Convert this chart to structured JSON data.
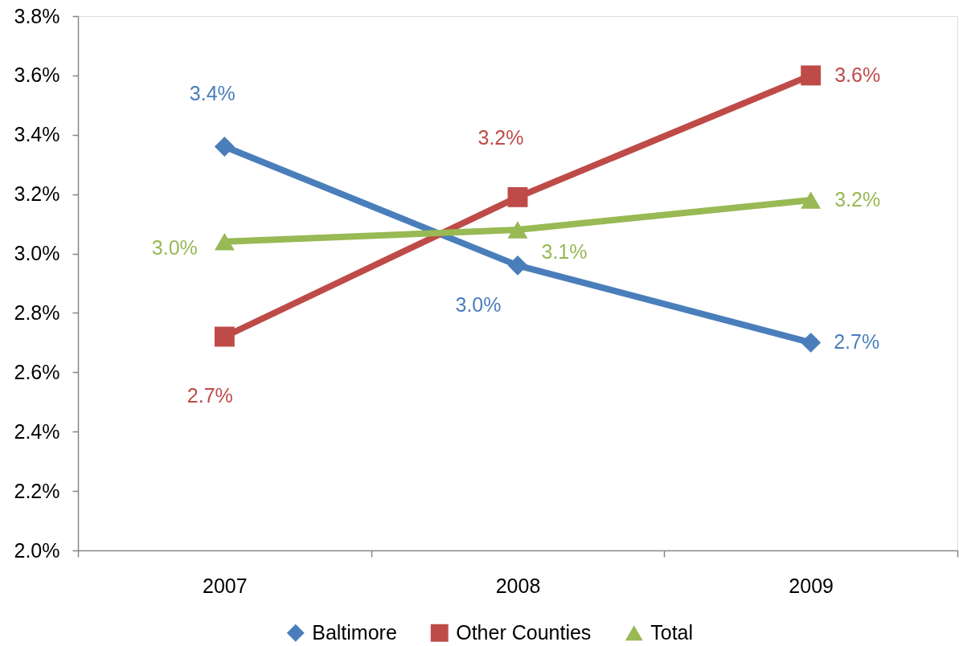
{
  "chart_data": {
    "type": "line",
    "categories": [
      "2007",
      "2008",
      "2009"
    ],
    "series": [
      {
        "name": "Baltimore",
        "color": "#4a7ebb",
        "marker": "diamond",
        "values": [
          3.36,
          2.96,
          2.7
        ],
        "value_labels": [
          "3.4%",
          "3.0%",
          "2.7%"
        ]
      },
      {
        "name": "Other Counties",
        "color": "#be4b48",
        "marker": "square",
        "values": [
          2.72,
          3.19,
          3.6
        ],
        "value_labels": [
          "2.7%",
          "3.2%",
          "3.6%"
        ]
      },
      {
        "name": "Total",
        "color": "#98b954",
        "marker": "triangle",
        "values": [
          3.04,
          3.08,
          3.18
        ],
        "value_labels": [
          "3.0%",
          "3.1%",
          "3.2%"
        ]
      }
    ],
    "ylim": [
      2.0,
      3.8
    ],
    "yticks": [
      {
        "value": 2.0,
        "label": "2.0%"
      },
      {
        "value": 2.2,
        "label": "2.2%"
      },
      {
        "value": 2.4,
        "label": "2.4%"
      },
      {
        "value": 2.6,
        "label": "2.6%"
      },
      {
        "value": 2.8,
        "label": "2.8%"
      },
      {
        "value": 3.0,
        "label": "3.0%"
      },
      {
        "value": 3.2,
        "label": "3.2%"
      },
      {
        "value": 3.4,
        "label": "3.4%"
      },
      {
        "value": 3.6,
        "label": "3.6%"
      },
      {
        "value": 3.8,
        "label": "3.8%"
      }
    ],
    "grid": false,
    "legend": "bottom",
    "line_style": "solid"
  }
}
